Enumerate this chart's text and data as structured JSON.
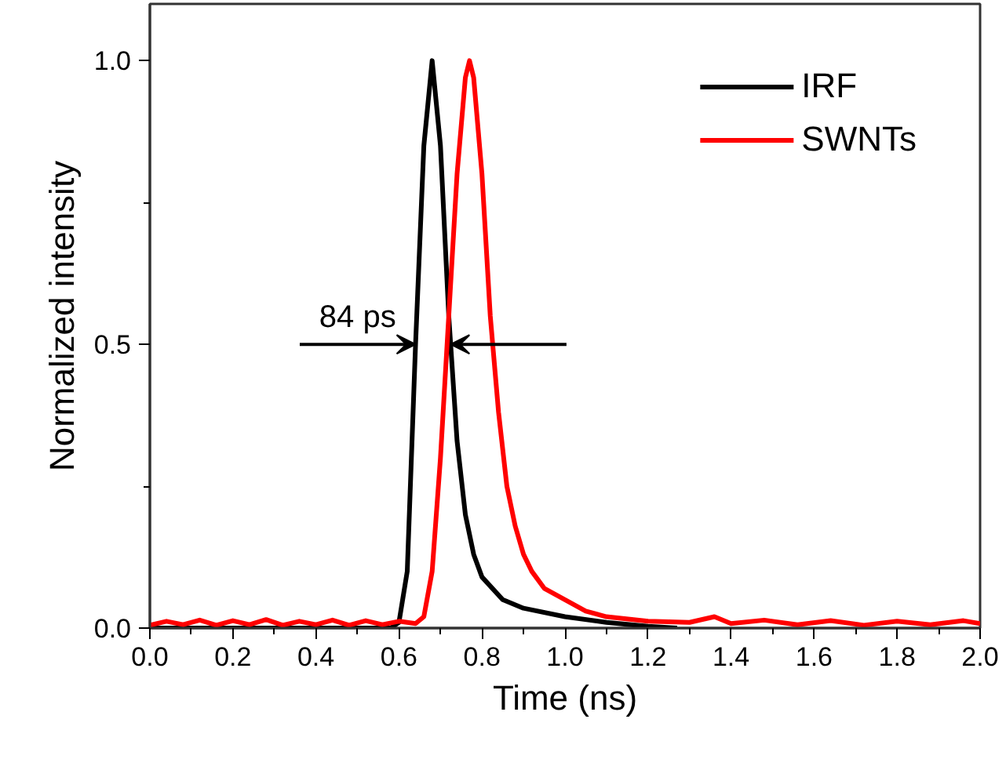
{
  "chart_data": {
    "type": "line",
    "xlabel": "Time (ns)",
    "ylabel": "Normalized intensity",
    "xlim": [
      0,
      2.0
    ],
    "ylim": [
      0,
      1.1
    ],
    "xticks": [
      {
        "value": 0,
        "label": "0.0"
      },
      {
        "value": 0.2,
        "label": "0.2"
      },
      {
        "value": 0.4,
        "label": "0.4"
      },
      {
        "value": 0.6,
        "label": "0.6"
      },
      {
        "value": 0.8,
        "label": "0.8"
      },
      {
        "value": 1.0,
        "label": "1.0"
      },
      {
        "value": 1.2,
        "label": "1.2"
      },
      {
        "value": 1.4,
        "label": "1.4"
      },
      {
        "value": 1.6,
        "label": "1.6"
      },
      {
        "value": 1.8,
        "label": "1.8"
      },
      {
        "value": 2.0,
        "label": "2.0"
      }
    ],
    "yticks": [
      {
        "value": 0,
        "label": "0.0"
      },
      {
        "value": 0.5,
        "label": "0.5"
      },
      {
        "value": 1.0,
        "label": "1.0"
      }
    ],
    "legend": "top right",
    "grid": false,
    "marker": "none",
    "line_style": "solid",
    "annotations": [
      "84 ps"
    ],
    "series": [
      {
        "name": "IRF",
        "color": "#000000",
        "x": [
          0.0,
          0.58,
          0.6,
          0.62,
          0.64,
          0.66,
          0.68,
          0.7,
          0.72,
          0.74,
          0.76,
          0.78,
          0.8,
          0.85,
          0.9,
          1.0,
          1.1,
          1.2,
          1.27
        ],
        "values": [
          0.0,
          0.0,
          0.01,
          0.1,
          0.5,
          0.85,
          1.0,
          0.85,
          0.55,
          0.33,
          0.2,
          0.13,
          0.09,
          0.05,
          0.035,
          0.02,
          0.01,
          0.003,
          0.0
        ]
      },
      {
        "name": "SWNTs",
        "color": "#ff0000",
        "x": [
          0.0,
          0.04,
          0.08,
          0.12,
          0.16,
          0.2,
          0.24,
          0.28,
          0.32,
          0.36,
          0.4,
          0.44,
          0.48,
          0.52,
          0.56,
          0.6,
          0.64,
          0.66,
          0.68,
          0.7,
          0.72,
          0.74,
          0.76,
          0.77,
          0.78,
          0.8,
          0.82,
          0.84,
          0.86,
          0.88,
          0.9,
          0.92,
          0.95,
          1.0,
          1.05,
          1.1,
          1.2,
          1.3,
          1.36,
          1.4,
          1.48,
          1.56,
          1.64,
          1.72,
          1.8,
          1.88,
          1.96,
          2.0
        ],
        "values": [
          0.005,
          0.012,
          0.006,
          0.014,
          0.005,
          0.013,
          0.006,
          0.015,
          0.005,
          0.012,
          0.006,
          0.014,
          0.005,
          0.013,
          0.006,
          0.012,
          0.008,
          0.02,
          0.1,
          0.3,
          0.55,
          0.8,
          0.97,
          1.0,
          0.97,
          0.8,
          0.55,
          0.38,
          0.25,
          0.18,
          0.13,
          0.1,
          0.07,
          0.05,
          0.03,
          0.02,
          0.012,
          0.01,
          0.02,
          0.008,
          0.014,
          0.006,
          0.013,
          0.005,
          0.012,
          0.006,
          0.013,
          0.008
        ]
      }
    ]
  }
}
